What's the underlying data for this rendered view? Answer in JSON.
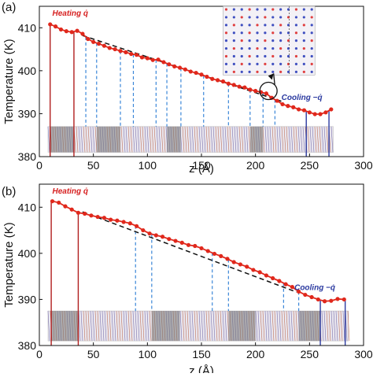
{
  "figure": {
    "chart_data": [
      {
        "type": "line",
        "panel_label": "(a)",
        "xlabel": "z (Å)",
        "ylabel": "Temperature (K)",
        "xlim": [
          0,
          300
        ],
        "ylim": [
          380,
          415
        ],
        "xticks": [
          "0",
          "50",
          "100",
          "150",
          "200",
          "250",
          "300"
        ],
        "yticks": [
          "380",
          "390",
          "400",
          "410"
        ],
        "heating_label": "Heating q̇",
        "cooling_label": "Cooling −q̇",
        "series": [
          {
            "color": "#e0281c",
            "x": [
              10,
              15,
              20,
              25,
              30,
              35,
              40,
              45,
              50,
              55,
              60,
              65,
              70,
              75,
              80,
              85,
              90,
              95,
              100,
              105,
              110,
              115,
              120,
              125,
              130,
              135,
              140,
              145,
              150,
              155,
              160,
              165,
              170,
              175,
              180,
              185,
              190,
              195,
              200,
              205,
              210,
              215,
              220,
              225,
              230,
              235,
              240,
              245,
              250,
              255,
              260,
              265,
              270
            ],
            "y": [
              410.8,
              410.3,
              409.6,
              409.2,
              409.0,
              409.3,
              408.6,
              407.4,
              406.7,
              406.3,
              405.8,
              405.3,
              405.0,
              404.6,
              404.3,
              403.9,
              403.7,
              403.1,
              402.9,
              402.5,
              402.6,
              402.0,
              401.5,
              401.0,
              400.7,
              400.3,
              399.8,
              399.5,
              399.1,
              398.6,
              398.1,
              397.8,
              397.5,
              397.0,
              396.7,
              396.3,
              396.1,
              395.6,
              395.3,
              395.0,
              394.7,
              393.7,
              393.0,
              392.2,
              391.8,
              391.5,
              391.0,
              390.8,
              390.3,
              389.9,
              389.9,
              390.3,
              391.0
            ]
          }
        ],
        "fit_line": {
          "x": [
            40,
            225
          ],
          "y": [
            408.2,
            392.8
          ]
        },
        "heat_sink_lines_x": [
          10,
          32
        ],
        "cool_sink_lines_x": [
          247,
          268
        ],
        "boundary_lines_x": [
          43,
          53,
          75,
          87,
          108,
          118,
          131,
          152,
          175,
          195,
          207,
          218
        ]
      },
      {
        "type": "line",
        "panel_label": "(b)",
        "xlabel": "z (Å)",
        "ylabel": "Temperature (K)",
        "xlim": [
          0,
          300
        ],
        "ylim": [
          380,
          415
        ],
        "xticks": [
          "0",
          "50",
          "100",
          "150",
          "200",
          "250",
          "300"
        ],
        "yticks": [
          "380",
          "390",
          "400",
          "410"
        ],
        "heating_label": "Heating q̇",
        "cooling_label": "Cooling −q̇",
        "series": [
          {
            "color": "#e0281c",
            "x": [
              12,
              18,
              24,
              30,
              36,
              42,
              48,
              54,
              60,
              66,
              72,
              78,
              84,
              90,
              96,
              102,
              108,
              114,
              120,
              126,
              132,
              138,
              144,
              150,
              156,
              162,
              168,
              174,
              180,
              186,
              192,
              198,
              204,
              210,
              216,
              222,
              228,
              234,
              240,
              246,
              252,
              258,
              264,
              270,
              276,
              282
            ],
            "y": [
              411.3,
              411.0,
              410.2,
              409.5,
              408.8,
              408.6,
              408.2,
              407.9,
              407.7,
              407.3,
              407.1,
              406.8,
              406.5,
              405.9,
              405.0,
              404.3,
              403.9,
              403.6,
              403.1,
              402.7,
              402.3,
              401.8,
              401.6,
              401.1,
              400.5,
              399.9,
              399.4,
              398.8,
              398.1,
              397.6,
              397.1,
              396.4,
              395.9,
              395.2,
              394.6,
              394.0,
              393.3,
              392.7,
              391.7,
              391.0,
              390.5,
              390.0,
              389.6,
              389.7,
              390.1,
              390.0
            ]
          }
        ],
        "fit_line": {
          "x": [
            40,
            238
          ],
          "y": [
            409.0,
            391.6
          ]
        },
        "heat_sink_lines_x": [
          11,
          36
        ],
        "cool_sink_lines_x": [
          260,
          283
        ],
        "boundary_lines_x": [
          89,
          104,
          160,
          175,
          226,
          240
        ]
      }
    ]
  }
}
